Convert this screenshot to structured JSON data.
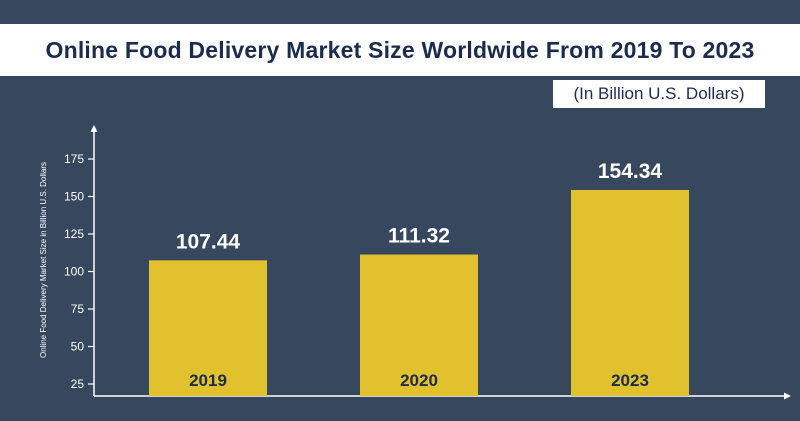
{
  "chart_data": {
    "type": "bar",
    "title": "Online Food Delivery Market Size Worldwide From 2019 To 2023",
    "subtitle": "(In Billion U.S. Dollars)",
    "ylabel": "Online Food Delivery Market Size in Billion U.S. Dollars",
    "xlabel": "",
    "categories": [
      "2019",
      "2020",
      "2023"
    ],
    "values": [
      107.44,
      111.32,
      154.34
    ],
    "value_labels": [
      "107.44",
      "111.32",
      "154.34"
    ],
    "yticks": [
      25,
      50,
      75,
      100,
      125,
      150,
      175
    ],
    "ylim": [
      17,
      182
    ],
    "grid": false,
    "legend": "none",
    "colors": {
      "background": "#37475e",
      "bar": "#e1c22e",
      "title_text": "#1b2c4f",
      "axis": "#ffffff"
    }
  }
}
